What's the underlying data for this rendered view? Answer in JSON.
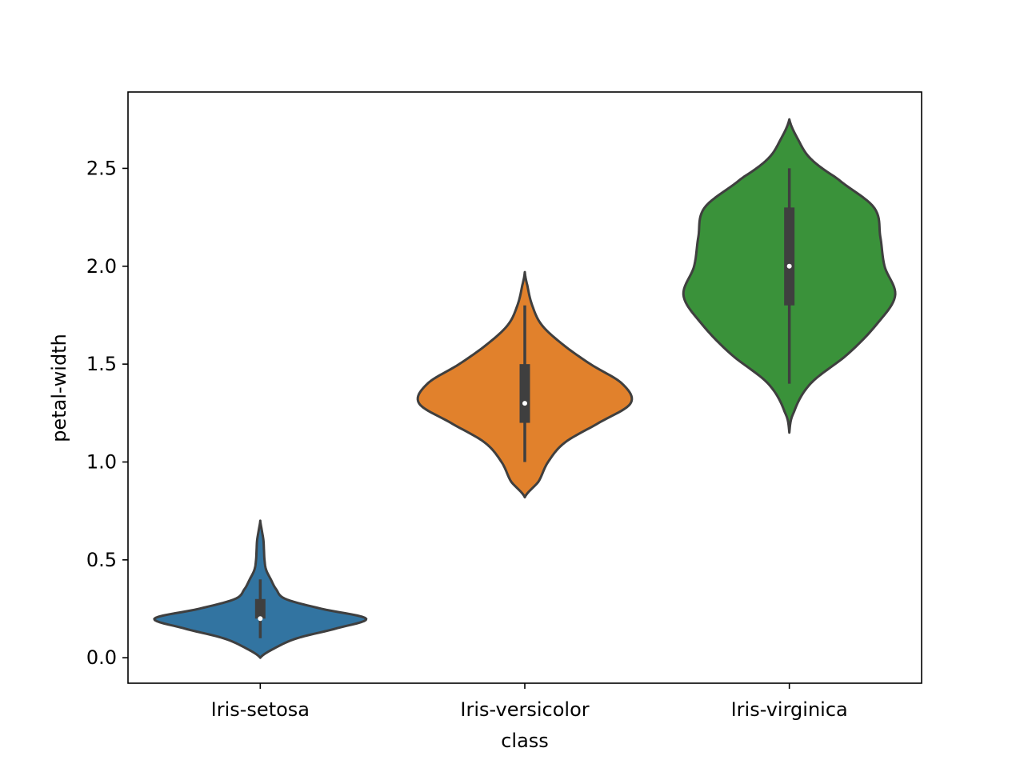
{
  "chart_data": {
    "type": "violin",
    "title": "",
    "xlabel": "class",
    "ylabel": "petal-width",
    "ylim": [
      -0.13,
      2.89
    ],
    "yticks": [
      0.0,
      0.5,
      1.0,
      1.5,
      2.0,
      2.5
    ],
    "ytick_labels": [
      "0.0",
      "0.5",
      "1.0",
      "1.5",
      "2.0",
      "2.5"
    ],
    "categories": [
      "Iris-setosa",
      "Iris-versicolor",
      "Iris-virginica"
    ],
    "grid": false,
    "legend": "none",
    "outline_color": "#3f3f3f",
    "violins": [
      {
        "category": "Iris-setosa",
        "color": "#3274a1",
        "density_max_halfwidth": 0.4,
        "min": 0.1,
        "q1": 0.2,
        "median": 0.2,
        "q3": 0.3,
        "max": 0.4,
        "kde_range": [
          0.0,
          0.7
        ],
        "profile": [
          [
            0.0,
            0.0
          ],
          [
            0.05,
            0.14
          ],
          [
            0.1,
            0.35
          ],
          [
            0.15,
            0.72
          ],
          [
            0.2,
            1.0
          ],
          [
            0.25,
            0.58
          ],
          [
            0.3,
            0.24
          ],
          [
            0.35,
            0.15
          ],
          [
            0.4,
            0.1
          ],
          [
            0.45,
            0.055
          ],
          [
            0.5,
            0.04
          ],
          [
            0.55,
            0.035
          ],
          [
            0.6,
            0.03
          ],
          [
            0.65,
            0.015
          ],
          [
            0.7,
            0.0
          ]
        ]
      },
      {
        "category": "Iris-versicolor",
        "color": "#e1812c",
        "density_max_halfwidth": 0.4,
        "min": 1.0,
        "q1": 1.2,
        "median": 1.3,
        "q3": 1.5,
        "max": 1.8,
        "kde_range": [
          0.82,
          1.97
        ],
        "profile": [
          [
            0.82,
            0.0
          ],
          [
            0.9,
            0.13
          ],
          [
            1.0,
            0.22
          ],
          [
            1.1,
            0.38
          ],
          [
            1.2,
            0.7
          ],
          [
            1.3,
            1.0
          ],
          [
            1.4,
            0.92
          ],
          [
            1.5,
            0.62
          ],
          [
            1.6,
            0.36
          ],
          [
            1.7,
            0.16
          ],
          [
            1.8,
            0.07
          ],
          [
            1.9,
            0.025
          ],
          [
            1.97,
            0.0
          ]
        ]
      },
      {
        "category": "Iris-virginica",
        "color": "#3a923a",
        "density_max_halfwidth": 0.4,
        "min": 1.4,
        "q1": 1.8,
        "median": 2.0,
        "q3": 2.3,
        "max": 2.5,
        "kde_range": [
          1.15,
          2.75
        ],
        "profile": [
          [
            1.15,
            0.0
          ],
          [
            1.25,
            0.04
          ],
          [
            1.4,
            0.2
          ],
          [
            1.55,
            0.55
          ],
          [
            1.7,
            0.82
          ],
          [
            1.85,
            1.0
          ],
          [
            2.0,
            0.9
          ],
          [
            2.15,
            0.86
          ],
          [
            2.3,
            0.8
          ],
          [
            2.45,
            0.45
          ],
          [
            2.55,
            0.2
          ],
          [
            2.65,
            0.08
          ],
          [
            2.75,
            0.0
          ]
        ]
      }
    ]
  }
}
